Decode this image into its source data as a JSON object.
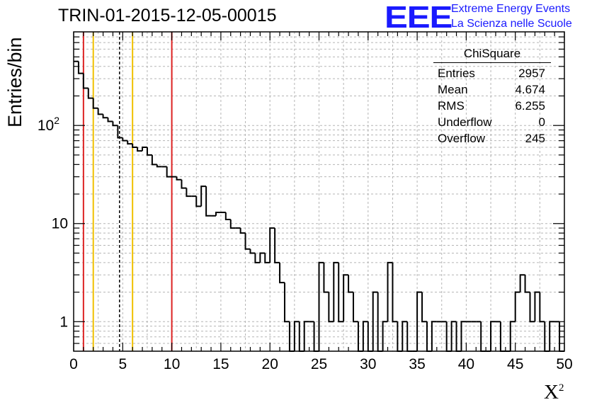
{
  "title": "TRIN-01-2015-12-05-00015",
  "logo": {
    "mark": "EEE",
    "line1": "Extreme Energy Events",
    "line2": "La Scienza nelle Scuole"
  },
  "stats": {
    "title": "ChiSquare",
    "rows": [
      {
        "label": "Entries",
        "value": "2957"
      },
      {
        "label": "Mean",
        "value": "4.674"
      },
      {
        "label": "RMS",
        "value": "6.255"
      },
      {
        "label": "Underflow",
        "value": "0"
      },
      {
        "label": "Overflow",
        "value": "245"
      }
    ]
  },
  "chart_data": {
    "type": "histogram",
    "title": "TRIN-01-2015-12-05-00015",
    "xlabel": "Χ",
    "xlabel_sup": "2",
    "ylabel": "Entries/bin",
    "xlim": [
      0,
      50
    ],
    "ylim": [
      0.5,
      900
    ],
    "y_scale": "log",
    "grid": true,
    "bin_width": 0.5,
    "x_ticks": [
      "0",
      "5",
      "10",
      "15",
      "20",
      "25",
      "30",
      "35",
      "40",
      "45",
      "50"
    ],
    "y_ticks": [
      {
        "value": 1,
        "label": "1"
      },
      {
        "value": 10,
        "label": "10"
      },
      {
        "value": 100,
        "label": "10",
        "exp": "2"
      }
    ],
    "values": [
      450,
      340,
      240,
      190,
      150,
      130,
      120,
      110,
      100,
      75,
      70,
      65,
      60,
      55,
      60,
      50,
      40,
      38,
      38,
      30,
      30,
      28,
      23,
      19,
      19,
      15,
      24,
      12,
      12,
      13,
      13,
      11,
      9,
      9,
      8,
      5.5,
      5,
      4,
      5,
      4,
      9,
      4,
      2.5,
      1,
      0,
      1,
      0,
      1,
      1,
      0,
      4,
      2,
      1,
      4,
      1,
      3,
      2,
      1,
      0,
      1,
      0,
      2,
      0,
      1,
      4,
      1,
      0,
      1,
      0,
      0,
      2,
      1,
      0,
      1,
      1,
      1,
      0,
      1,
      0,
      1,
      1,
      1,
      1,
      0,
      0,
      1,
      1,
      0,
      0,
      1,
      2,
      3,
      2,
      1,
      2,
      1,
      0,
      1,
      1,
      0
    ],
    "vlines": [
      {
        "x": 1,
        "color": "#dd2222",
        "dash": false
      },
      {
        "x": 2,
        "color": "#f0c000",
        "dash": false
      },
      {
        "x": 4.674,
        "color": "#000000",
        "dash": true
      },
      {
        "x": 6,
        "color": "#f0c000",
        "dash": false
      },
      {
        "x": 10,
        "color": "#dd2222",
        "dash": false
      }
    ]
  }
}
